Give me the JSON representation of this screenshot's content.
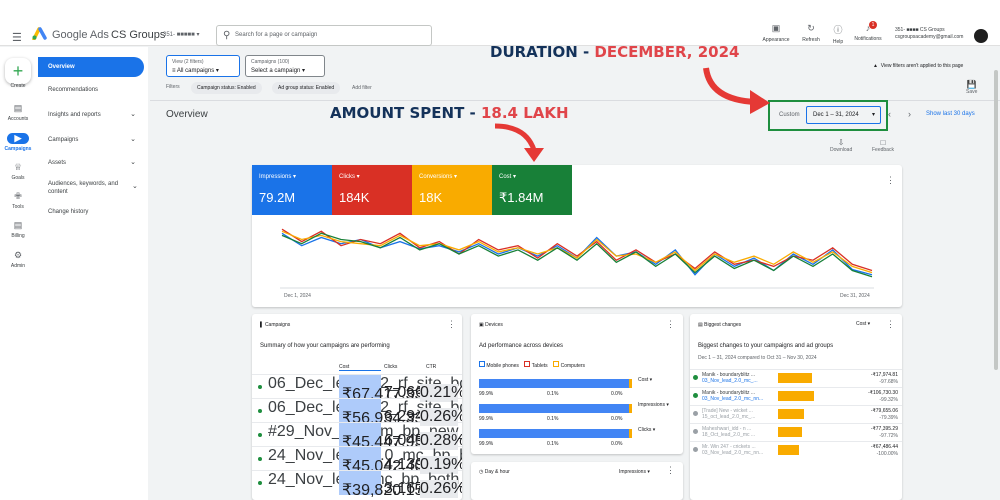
{
  "topbar": {
    "brand": "Google Ads",
    "account_name": "CS Groups",
    "account_id": "351-",
    "search_placeholder": "Search for a page or campaign",
    "actions": [
      {
        "label": "Appearance",
        "icon": "appearance-icon"
      },
      {
        "label": "Refresh",
        "icon": "refresh-icon"
      },
      {
        "label": "Help",
        "icon": "help-icon"
      },
      {
        "label": "Notifications",
        "icon": "bell-icon",
        "badge": "1"
      }
    ],
    "user_id": "351-",
    "user_name": "CS Groups",
    "user_email": "csgroupsacademy@gmail.com"
  },
  "rail": {
    "create": "Create",
    "items": [
      {
        "label": "Accounts",
        "icon": "accounts-icon"
      },
      {
        "label": "Campaigns",
        "icon": "campaigns-icon"
      },
      {
        "label": "Goals",
        "icon": "goals-icon"
      },
      {
        "label": "Tools",
        "icon": "tools-icon"
      },
      {
        "label": "Billing",
        "icon": "billing-icon"
      },
      {
        "label": "Admin",
        "icon": "admin-icon"
      }
    ]
  },
  "nav": {
    "items": [
      {
        "label": "Overview"
      },
      {
        "label": "Recommendations"
      },
      {
        "label": "Insights and reports"
      },
      {
        "label": "Campaigns"
      },
      {
        "label": "Assets"
      },
      {
        "label": "Audiences, keywords, and content"
      },
      {
        "label": "Change history"
      }
    ]
  },
  "filters": {
    "view_label": "View (2 filters)",
    "view_value": "All campaigns",
    "campaigns_label": "Campaigns (100)",
    "campaigns_value": "Select a campaign",
    "filters_label": "Filters",
    "chips": [
      "Campaign status: Enabled",
      "Ad group status: Enabled"
    ],
    "add_filter": "Add filter",
    "notice": "View filters aren't applied to this page",
    "save": "Save"
  },
  "page": {
    "title": "Overview",
    "date_label": "Custom",
    "date_range": "Dec 1 – 31, 2024",
    "show_last": "Show last 30 days",
    "download": "Download",
    "feedback": "Feedback"
  },
  "annotations": {
    "duration_a": "DURATION - ",
    "duration_b": "DECEMBER, 2024",
    "amount_a": "AMOUNT SPENT - ",
    "amount_b": "18.4 LAKH"
  },
  "metrics": [
    {
      "label": "Impressions",
      "value": "79.2M",
      "color": "#1a73e8"
    },
    {
      "label": "Clicks",
      "value": "184K",
      "color": "#d93025"
    },
    {
      "label": "Conversions",
      "value": "18K",
      "color": "#f9ab00"
    },
    {
      "label": "Cost",
      "value": "₹1.84M",
      "color": "#188038"
    }
  ],
  "chart_data": {
    "type": "line",
    "x_start": "Dec 1, 2024",
    "x_end": "Dec 31, 2024",
    "series": [
      {
        "color": "#1a73e8",
        "values": [
          70,
          58,
          66,
          60,
          64,
          56,
          62,
          55,
          58,
          52,
          60,
          50,
          56,
          48,
          58,
          46,
          66,
          48,
          52,
          40,
          54,
          30,
          50,
          38,
          46,
          34,
          50,
          40,
          54,
          35,
          30
        ]
      },
      {
        "color": "#d93025",
        "values": [
          74,
          62,
          72,
          58,
          64,
          60,
          70,
          56,
          62,
          50,
          64,
          54,
          58,
          46,
          60,
          48,
          62,
          44,
          54,
          42,
          50,
          36,
          52,
          40,
          44,
          38,
          48,
          44,
          56,
          40,
          34
        ]
      },
      {
        "color": "#f9ab00",
        "values": [
          72,
          64,
          68,
          62,
          60,
          58,
          68,
          58,
          60,
          54,
          62,
          52,
          56,
          50,
          56,
          46,
          64,
          48,
          50,
          42,
          52,
          34,
          50,
          42,
          48,
          40,
          52,
          42,
          52,
          38,
          32
        ]
      },
      {
        "color": "#188038",
        "values": [
          68,
          60,
          70,
          64,
          62,
          56,
          66,
          54,
          60,
          50,
          58,
          48,
          54,
          44,
          56,
          44,
          60,
          42,
          52,
          38,
          50,
          32,
          48,
          36,
          44,
          34,
          48,
          38,
          50,
          34,
          28
        ]
      }
    ]
  },
  "campaigns_card": {
    "title": "Campaigns",
    "subtitle": "Summary of how your campaigns are performing",
    "headers": [
      "Cost",
      "Clicks",
      "CTR"
    ],
    "rows": [
      {
        "name": "06_Dec_lead_02_rf_site_both_nto_display_ads",
        "cost": "₹67,417.33",
        "clicks": "7,066",
        "ctr": "0.21%",
        "status": "#1e8e3e"
      },
      {
        "name": "06_Dec_lead_02_rf_site_both_nto_display_ads",
        "cost": "₹56,934.33",
        "clicks": "6,294",
        "ctr": "0.26%",
        "status": "#1e8e3e"
      },
      {
        "name": "#29_Nov_lead_m_bp_new_site_both_nto_displ...",
        "cost": "₹45,447.95",
        "clicks": "6,045",
        "ctr": "0.28%",
        "status": "#1e8e3e"
      },
      {
        "name": "24_Nov_lead_2.0_mc_bp_both_nto_display_ads",
        "cost": "₹45,042.40",
        "clicks": "4,139",
        "ctr": "0.19%",
        "status": "#1e8e3e"
      },
      {
        "name": "24_Nov_lead_mc_bp_both_nto_dispaly_ads",
        "cost": "₹39,820.15",
        "clicks": "3,167",
        "ctr": "0.26%",
        "status": "#1e8e3e"
      }
    ]
  },
  "devices_card": {
    "title": "Devices",
    "subtitle": "Ad performance across devices",
    "legend": [
      "Mobile phones",
      "Tablets",
      "Computers"
    ],
    "rows": [
      {
        "metric": "Cost",
        "mobile": "99.9%",
        "tablet": "0.1%",
        "computer": "0.0%",
        "mobile_frac": 0.999
      },
      {
        "metric": "Impressions",
        "mobile": "99.9%",
        "tablet": "0.1%",
        "computer": "0.0%",
        "mobile_frac": 0.999
      },
      {
        "metric": "Clicks",
        "mobile": "99.9%",
        "tablet": "0.1%",
        "computer": "0.0%",
        "mobile_frac": 0.999
      }
    ]
  },
  "dayhour_card": {
    "title": "Day & hour",
    "metric": "Impressions"
  },
  "changes_card": {
    "title": "Biggest changes",
    "metric": "Cost",
    "subtitle": "Biggest changes to your campaigns and ad groups",
    "compare": "Dec 1 – 31, 2024 compared to Oct 31 – Nov 30, 2024",
    "rows": [
      {
        "name_a": "Manik - boundaryblitz ...",
        "name_b": "03_Nov_lead_2.0_mc_...",
        "v1": "-₹17,974.81",
        "v2": "-97.68%",
        "frac": 0.85,
        "status": "#1e8e3e",
        "muted": false
      },
      {
        "name_a": "Manik - boundaryblitz ...",
        "name_b": "03_Nov_lead_2.0_mc_nn...",
        "v1": "-₹106,730.30",
        "v2": "-99.32%",
        "frac": 0.9,
        "status": "#1e8e3e",
        "muted": false
      },
      {
        "name_a": "[Trade] New - wicket ...",
        "name_b": "15_oct_lead_2.0_mc_...",
        "v1": "-₹79,655.06",
        "v2": "-79.39%",
        "frac": 0.65,
        "status": "#9aa0a6",
        "muted": true
      },
      {
        "name_a": "Maheshwari_idd - n ...",
        "name_b": "18_Oct_lead_2.0_mc ...",
        "v1": "-₹77,395.29",
        "v2": "-97.72%",
        "frac": 0.6,
        "status": "#9aa0a6",
        "muted": true
      },
      {
        "name_a": "Mr. Win 247 - crickets ...",
        "name_b": "03_Nov_lead_2.0_mc_nn...",
        "v1": "-₹67,486.44",
        "v2": "-100.00%",
        "frac": 0.52,
        "status": "#9aa0a6",
        "muted": true
      }
    ]
  }
}
